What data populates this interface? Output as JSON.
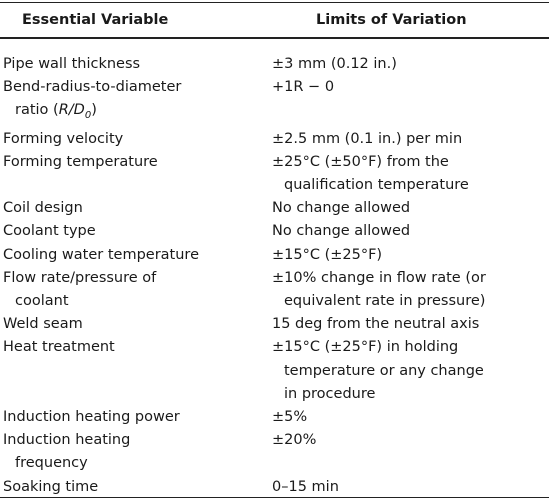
{
  "table": {
    "header": [
      "Essential Variable",
      "Limits of Variation"
    ],
    "rows": [
      [
        [
          "Pipe wall thickness"
        ],
        [
          "±3 mm (0.12 in.)"
        ]
      ],
      [
        [
          "Bend-radius-to-diameter",
          [
            "ratio (",
            "R/D",
            "0",
            ")"
          ]
        ],
        [
          "+1R − 0"
        ]
      ],
      [
        [
          "Forming velocity"
        ],
        [
          "±2.5 mm (0.1 in.) per min"
        ]
      ],
      [
        [
          "Forming temperature"
        ],
        [
          "±25°C (±50°F) from the",
          "qualification temperature"
        ]
      ],
      [
        [
          "Coil design"
        ],
        [
          "No change allowed"
        ]
      ],
      [
        [
          "Coolant type"
        ],
        [
          "No change allowed"
        ]
      ],
      [
        [
          "Cooling water temperature"
        ],
        [
          "±15°C (±25°F)"
        ]
      ],
      [
        [
          "Flow rate/pressure of",
          "coolant"
        ],
        [
          "±10% change in flow rate (or",
          "equivalent rate in pressure)"
        ]
      ],
      [
        [
          "Weld seam"
        ],
        [
          "15 deg from the neutral axis"
        ]
      ],
      [
        [
          "Heat treatment"
        ],
        [
          "±15°C (±25°F) in holding",
          "temperature or any change",
          "in procedure"
        ]
      ],
      [
        [
          "Induction heating power"
        ],
        [
          "±5%"
        ]
      ],
      [
        [
          "Induction heating",
          "frequency"
        ],
        [
          "±20%"
        ]
      ],
      [
        [
          "Soaking time"
        ],
        [
          "0–15 min"
        ]
      ]
    ]
  }
}
